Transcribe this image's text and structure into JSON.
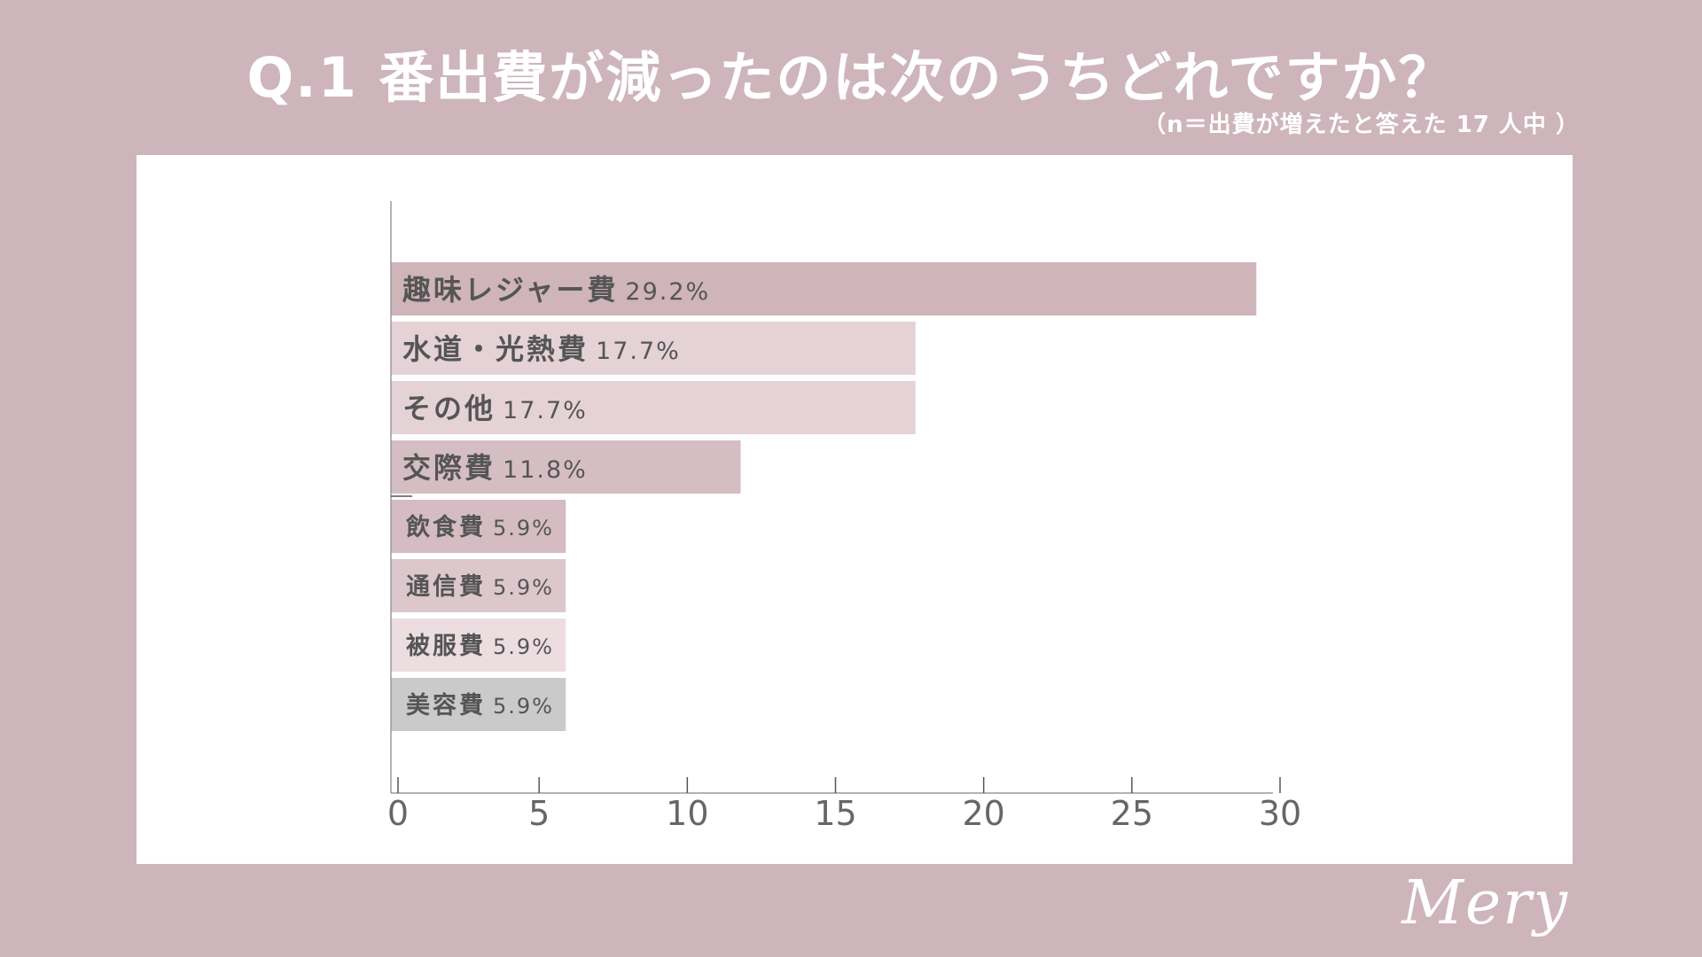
{
  "title": "Q.1 番出費が減ったのは次のうちどれですか？",
  "subtitle": "（n＝出費が増えたと答えた 17 人中 ）",
  "logo": "Mery",
  "colors": {
    "background": "#ceb5bb",
    "panel": "#ffffff",
    "axis": "#9a9a9a",
    "label_text": "#555555",
    "tick_text": "#666666"
  },
  "chart_data": {
    "type": "bar",
    "orientation": "horizontal",
    "categories": [
      "趣味レジャー費",
      "水道・光熱費",
      "その他",
      "交際費",
      "飲食費",
      "通信費",
      "被服費",
      "美容費"
    ],
    "values": [
      29.2,
      17.7,
      17.7,
      11.8,
      5.9,
      5.9,
      5.9,
      5.9
    ],
    "value_labels": [
      "29.2%",
      "17.7%",
      "17.7%",
      "11.8%",
      "5.9%",
      "5.9%",
      "5.9%",
      "5.9%"
    ],
    "bar_colors": [
      "#cfb4ba",
      "#e4d2d6",
      "#e4d2d6",
      "#d5bec3",
      "#d4bcc2",
      "#dcc7cc",
      "#ecdde1",
      "#cacaca"
    ],
    "xlim": [
      0,
      30
    ],
    "xticks": [
      0,
      5,
      10,
      15,
      20,
      25,
      30
    ],
    "xlabel": "",
    "ylabel": "",
    "grid": false,
    "legend": "none"
  }
}
